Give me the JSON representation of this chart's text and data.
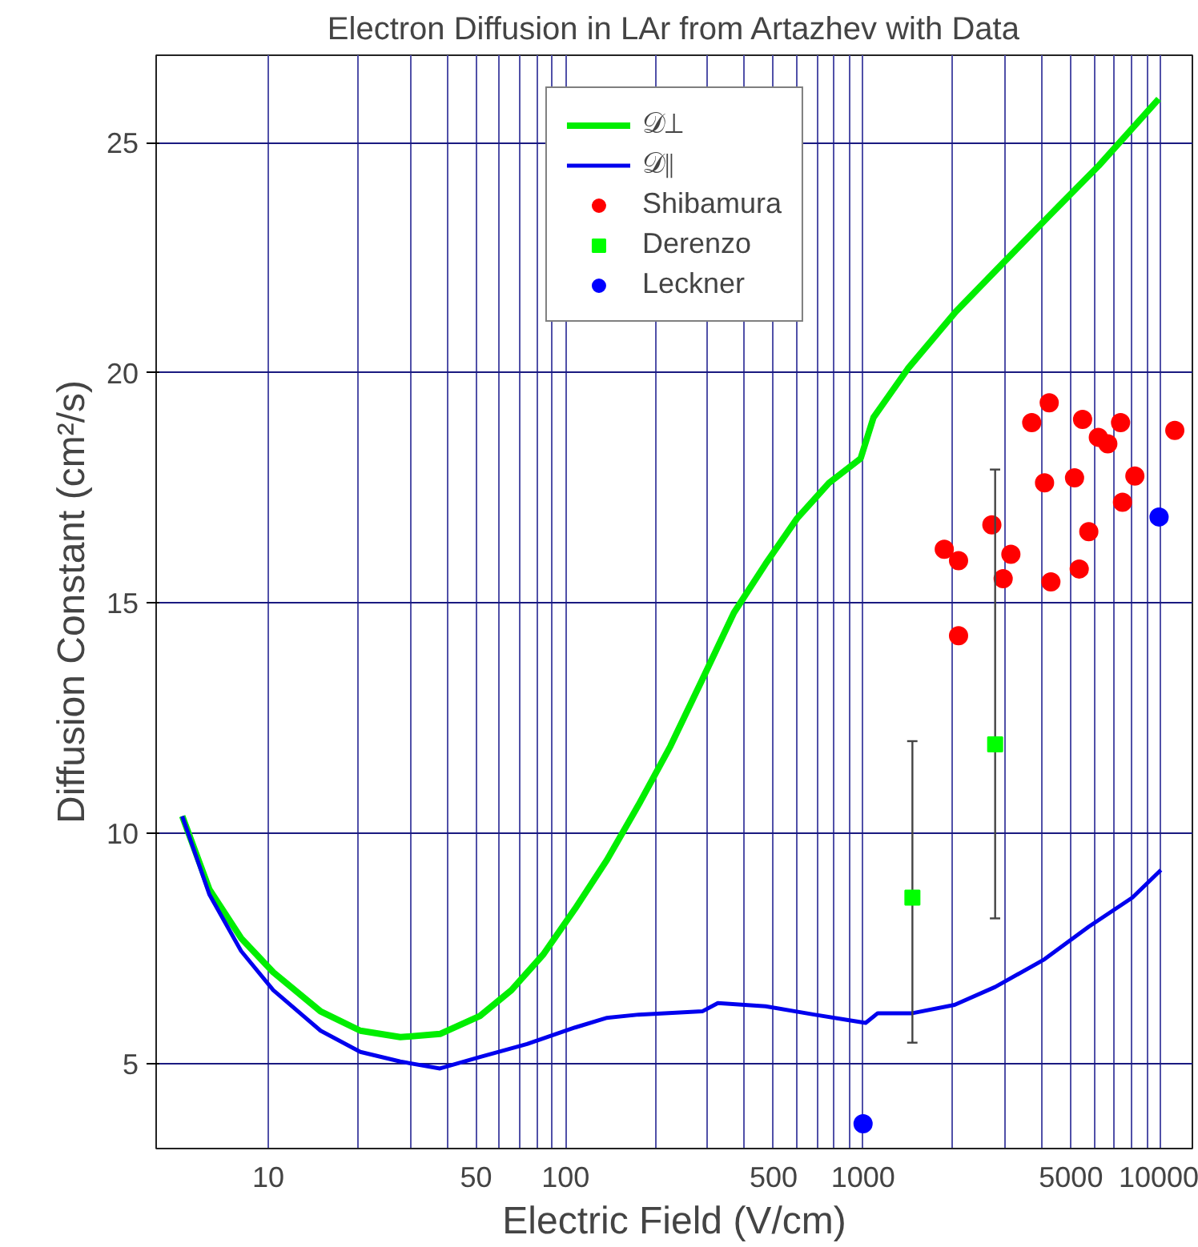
{
  "chart_data": {
    "type": "line",
    "title": "Electron Diffusion in LAr from Artazhev with Data",
    "xlabel": "Electric Field (V/cm)",
    "ylabel": "Diffusion Constant (cm²/s)",
    "log": "x",
    "xlim": [
      4.2,
      12800
    ],
    "ylim": [
      3.15,
      26.9
    ],
    "xticks": [
      10,
      {
        "value": 20,
        "label": null
      },
      {
        "value": 30,
        "label": null
      },
      {
        "value": 40,
        "label": null
      },
      50,
      {
        "value": 60,
        "label": null
      },
      {
        "value": 70,
        "label": null
      },
      {
        "value": 80,
        "label": null
      },
      {
        "value": 90,
        "label": null
      },
      100,
      {
        "value": 200,
        "label": null
      },
      {
        "value": 300,
        "label": null
      },
      {
        "value": 400,
        "label": null
      },
      500,
      {
        "value": 600,
        "label": null
      },
      {
        "value": 700,
        "label": null
      },
      {
        "value": 800,
        "label": null
      },
      {
        "value": 900,
        "label": null
      },
      1000,
      {
        "value": 2000,
        "label": null
      },
      {
        "value": 3000,
        "label": null
      },
      {
        "value": 4000,
        "label": null
      },
      5000,
      {
        "value": 6000,
        "label": null
      },
      {
        "value": 7000,
        "label": null
      },
      {
        "value": 8000,
        "label": null
      },
      {
        "value": 9000,
        "label": null
      },
      10000
    ],
    "yticks": [
      5,
      10,
      15,
      20,
      25
    ],
    "grid": true,
    "legend": "top",
    "series": [
      {
        "name": "𝒟⊥",
        "color": "#00ee00",
        "marker": "none",
        "x": [
          5.14,
          6.34,
          8.11,
          10.4,
          15.0,
          20.4,
          27.8,
          37.8,
          51.5,
          65.7,
          84.2,
          107.6,
          137.7,
          176,
          225,
          288,
          368,
          470,
          600,
          768,
          981,
          1084,
          1414,
          2050,
          2960,
          4280,
          6200,
          9860
        ],
        "values": [
          10.37,
          8.78,
          7.72,
          6.98,
          6.13,
          5.71,
          5.57,
          5.64,
          6.03,
          6.59,
          7.37,
          8.36,
          9.42,
          10.62,
          11.89,
          13.34,
          14.79,
          15.85,
          16.84,
          17.61,
          18.14,
          19.03,
          20.09,
          21.33,
          22.39,
          23.45,
          24.5,
          25.95
        ]
      },
      {
        "name": "𝒟∥",
        "color": "#0000ee",
        "marker": "none",
        "x": [
          5.14,
          6.34,
          8.11,
          10.4,
          15.0,
          20.4,
          27.8,
          37.8,
          51.5,
          74.2,
          107.6,
          137.7,
          176,
          288,
          325,
          470,
          685,
          874,
          1020,
          1120,
          1465,
          2030,
          2780,
          4070,
          5740,
          8040,
          10030
        ],
        "values": [
          10.37,
          8.67,
          7.44,
          6.59,
          5.71,
          5.25,
          5.04,
          4.89,
          5.14,
          5.42,
          5.78,
          5.99,
          6.06,
          6.13,
          6.31,
          6.24,
          6.06,
          5.95,
          5.88,
          6.09,
          6.09,
          6.27,
          6.66,
          7.26,
          7.97,
          8.6,
          9.2
        ]
      },
      {
        "name": "Shibamura",
        "type": "scatter",
        "color": "#ff0000",
        "marker": "circle",
        "x": [
          1875,
          2094,
          2094,
          2710,
          3140,
          2958,
          3690,
          4225,
          4075,
          4280,
          5470,
          5140,
          5740,
          5330,
          6180,
          6650,
          7340,
          8200,
          7450,
          11170
        ],
        "values": [
          16.17,
          15.92,
          14.29,
          16.7,
          16.06,
          15.53,
          18.92,
          19.35,
          17.61,
          15.46,
          18.99,
          17.72,
          16.55,
          15.74,
          18.6,
          18.46,
          18.92,
          17.76,
          17.19,
          18.75
        ]
      },
      {
        "name": "Derenzo",
        "type": "scatter",
        "color": "#00ff00",
        "marker": "square",
        "x": [
          1465,
          2780
        ],
        "values": [
          8.6,
          11.93
        ],
        "errors": [
          [
            5.45,
            12.0
          ],
          [
            8.15,
            17.9
          ]
        ]
      },
      {
        "name": "Leckner",
        "type": "scatter",
        "color": "#0000ff",
        "marker": "circle",
        "x": [
          1000,
          9890
        ],
        "values": [
          3.69,
          16.87
        ]
      }
    ]
  }
}
